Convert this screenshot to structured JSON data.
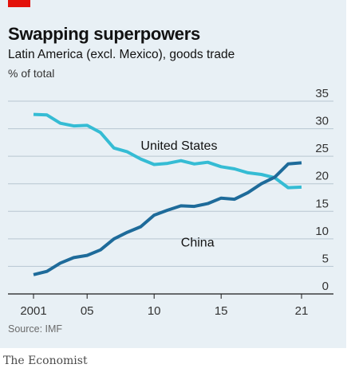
{
  "header": {
    "title": "Swapping superpowers",
    "subtitle": "Latin America (excl. Mexico), goods trade",
    "unit": "% of total"
  },
  "footer": {
    "source": "Source: IMF",
    "brand": "The Economist"
  },
  "colors": {
    "accent": "#e3120b",
    "background": "#e8f0f5",
    "united_states": "#35bcd4",
    "china": "#1e6b9a",
    "gridline": "#b7c6d1"
  },
  "chart_data": {
    "type": "line",
    "title": "Swapping superpowers",
    "subtitle": "Latin America (excl. Mexico), goods trade",
    "ylabel": "% of total",
    "xlim": [
      2001,
      2021
    ],
    "ylim": [
      0,
      35
    ],
    "y_axis_side": "right",
    "grid": "horizontal",
    "x_ticks": [
      {
        "value": 2001,
        "label": "2001"
      },
      {
        "value": 2005,
        "label": "05"
      },
      {
        "value": 2010,
        "label": "10"
      },
      {
        "value": 2015,
        "label": "15"
      },
      {
        "value": 2021,
        "label": "21"
      }
    ],
    "y_ticks": [
      {
        "value": 0,
        "label": "0"
      },
      {
        "value": 5,
        "label": "5"
      },
      {
        "value": 10,
        "label": "10"
      },
      {
        "value": 15,
        "label": "15"
      },
      {
        "value": 20,
        "label": "20"
      },
      {
        "value": 25,
        "label": "25"
      },
      {
        "value": 30,
        "label": "30"
      },
      {
        "value": 35,
        "label": "35"
      }
    ],
    "x": [
      2001,
      2002,
      2003,
      2004,
      2005,
      2006,
      2007,
      2008,
      2009,
      2010,
      2011,
      2012,
      2013,
      2014,
      2015,
      2016,
      2017,
      2018,
      2019,
      2020,
      2021
    ],
    "series": [
      {
        "name": "United States",
        "color": "#35bcd4",
        "label_at": [
          2009,
          26.2
        ],
        "values": [
          32.6,
          32.5,
          31.0,
          30.5,
          30.6,
          29.3,
          26.5,
          25.8,
          24.5,
          23.5,
          23.7,
          24.2,
          23.6,
          23.9,
          23.1,
          22.7,
          22.0,
          21.7,
          21.1,
          19.3,
          19.4
        ]
      },
      {
        "name": "China",
        "color": "#1e6b9a",
        "label_at": [
          2012,
          8.6
        ],
        "values": [
          3.5,
          4.1,
          5.6,
          6.6,
          7.0,
          8.0,
          10.0,
          11.2,
          12.2,
          14.3,
          15.2,
          16.0,
          15.9,
          16.4,
          17.4,
          17.2,
          18.4,
          20.0,
          21.2,
          23.6,
          23.8
        ]
      }
    ]
  }
}
